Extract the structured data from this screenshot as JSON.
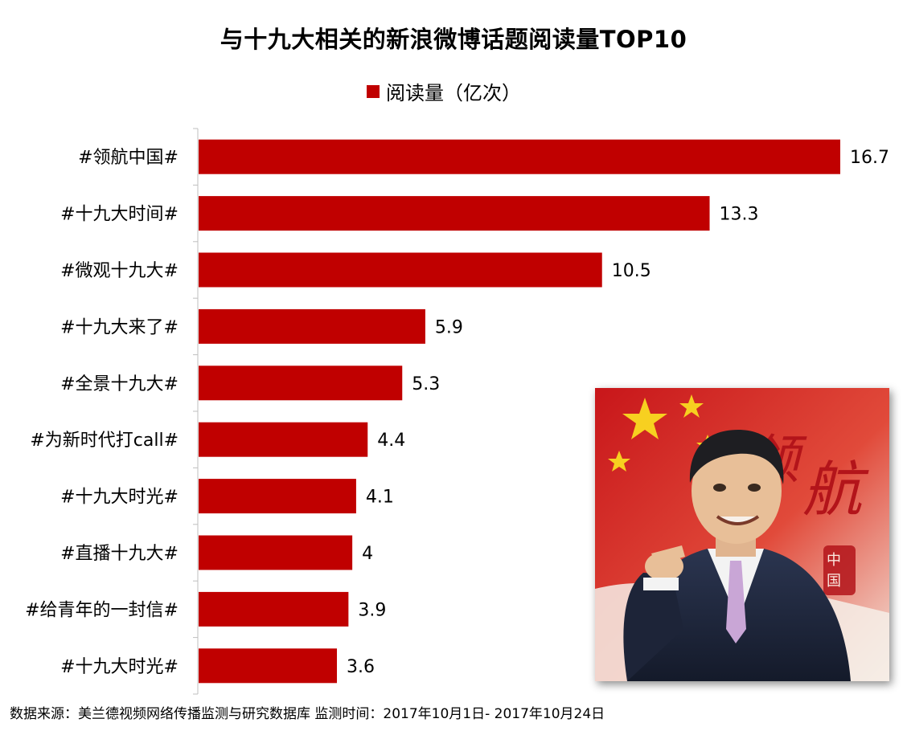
{
  "title": "与十九大相关的新浪微博话题阅读量TOP10",
  "legend": {
    "label": "阅读量（亿次）",
    "color": "#C00000"
  },
  "source": "数据来源：美兰德视频网络传播监测与研究数据库    监测时间：2017年10月1日- 2017年10月24日",
  "photo": {
    "calligraphy": "领航",
    "seal": "中国",
    "icon": "portrait-photo"
  },
  "chart_data": {
    "type": "bar",
    "orientation": "horizontal",
    "categories": [
      "#领航中国#",
      "#十九大时间#",
      "#微观十九大#",
      "#十九大来了#",
      "#全景十九大#",
      "#为新时代打call#",
      "#十九大时光#",
      "#直播十九大#",
      "#给青年的一封信#",
      "#十九大时光#"
    ],
    "values": [
      16.7,
      13.3,
      10.5,
      5.9,
      5.3,
      4.4,
      4.1,
      4,
      3.9,
      3.6
    ],
    "value_labels": [
      "16.7",
      "13.3",
      "10.5",
      "5.9",
      "5.3",
      "4.4",
      "4.1",
      "4",
      "3.9",
      "3.6"
    ],
    "bar_color": "#C00000",
    "xlim": [
      0,
      17.5
    ],
    "grid": false,
    "legend_position": "top"
  }
}
